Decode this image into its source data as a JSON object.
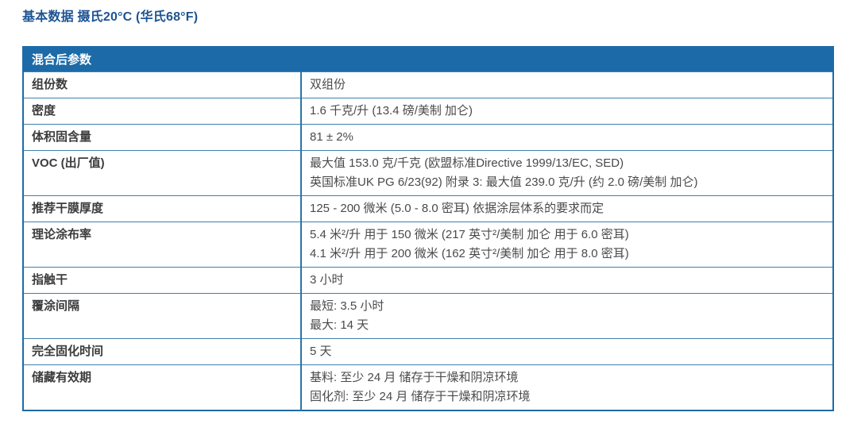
{
  "page_title": "基本数据 摄氏20°C (华氏68°F)",
  "table": {
    "header": "混合后参数",
    "rows": [
      {
        "label": "组份数",
        "lines": [
          "双组份"
        ]
      },
      {
        "label": "密度",
        "lines": [
          "1.6 千克/升 (13.4 磅/美制 加仑)"
        ]
      },
      {
        "label": "体积固含量",
        "lines": [
          "81 ± 2%"
        ]
      },
      {
        "label": "VOC (出厂值)",
        "lines": [
          "最大值 153.0 克/千克 (欧盟标准Directive 1999/13/EC, SED)",
          "英国标准UK PG 6/23(92) 附录 3: 最大值 239.0 克/升 (约 2.0 磅/美制 加仑)"
        ]
      },
      {
        "label": "推荐干膜厚度",
        "lines": [
          "125 - 200 微米 (5.0 - 8.0 密耳) 依据涂层体系的要求而定"
        ]
      },
      {
        "label": "理论涂布率",
        "lines": [
          "5.4 米²/升 用于 150 微米 (217 英寸²/美制 加仑 用于 6.0 密耳)",
          "4.1 米²/升 用于 200 微米 (162 英寸²/美制 加仑 用于 8.0 密耳)"
        ]
      },
      {
        "label": "指触干",
        "lines": [
          "3 小时"
        ]
      },
      {
        "label": "覆涂间隔",
        "lines": [
          "最短: 3.5 小时",
          "最大: 14 天"
        ]
      },
      {
        "label": "完全固化时间",
        "lines": [
          "5 天"
        ]
      },
      {
        "label": "储藏有效期",
        "lines": [
          "基料: 至少 24 月 储存于干燥和阴凉环境",
          "固化剂: 至少 24 月 储存于干燥和阴凉环境"
        ]
      }
    ]
  },
  "colors": {
    "header_bg": "#1C6BA8",
    "outer_border": "#1C6BA8",
    "inner_border": "#4080AE",
    "divider_border": "#2D74A7",
    "title_color": "#1D5493",
    "label_color": "#3C3C3C",
    "value_color": "#4A4A4A",
    "header_text": "#FFFFFF"
  }
}
